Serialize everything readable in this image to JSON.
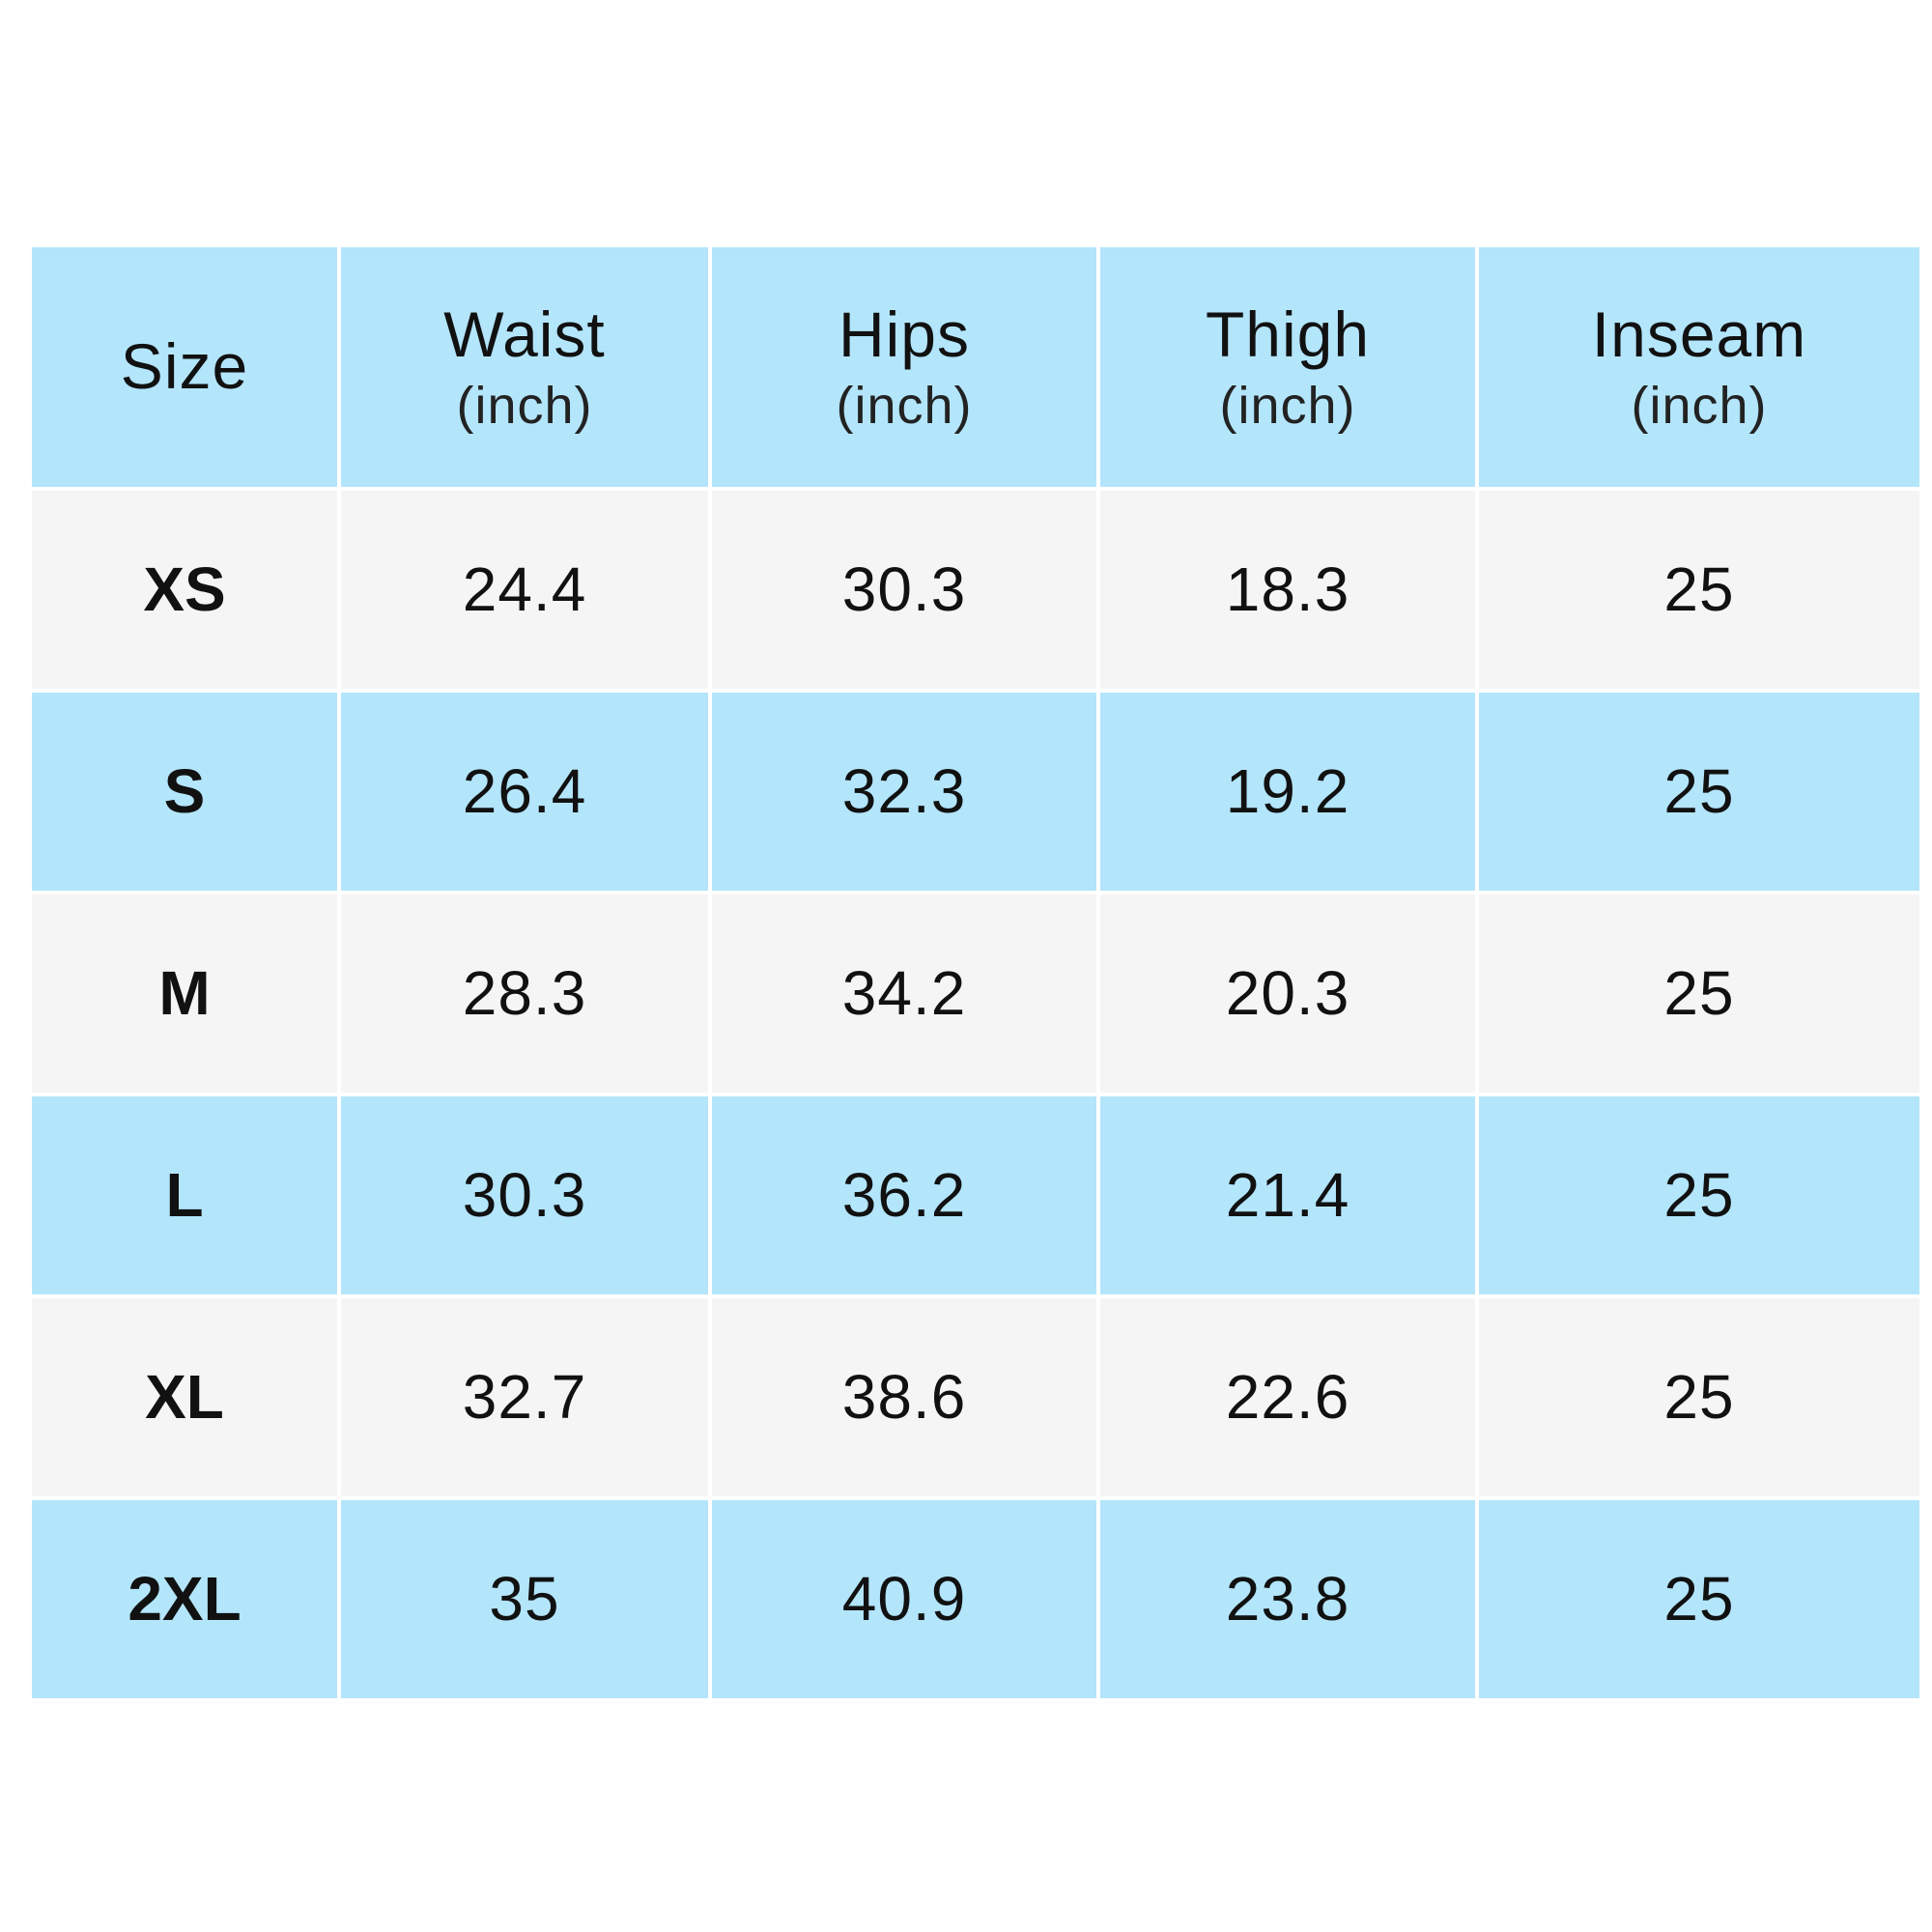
{
  "colors": {
    "header_bg": "#b3e5fb",
    "row_light_bg": "#f5f5f5",
    "row_blue_bg": "#b3e5fb",
    "text": "#111111"
  },
  "header": {
    "size": "Size",
    "waist": "Waist",
    "waist_unit": "(inch)",
    "hips": "Hips",
    "hips_unit": "(inch)",
    "thigh": "Thigh",
    "thigh_unit": "(inch)",
    "inseam": "Inseam",
    "inseam_unit": "(inch)"
  },
  "rows": [
    {
      "size": "XS",
      "waist": "24.4",
      "hips": "30.3",
      "thigh": "18.3",
      "inseam": "25"
    },
    {
      "size": "S",
      "waist": "26.4",
      "hips": "32.3",
      "thigh": "19.2",
      "inseam": "25"
    },
    {
      "size": "M",
      "waist": "28.3",
      "hips": "34.2",
      "thigh": "20.3",
      "inseam": "25"
    },
    {
      "size": "L",
      "waist": "30.3",
      "hips": "36.2",
      "thigh": "21.4",
      "inseam": "25"
    },
    {
      "size": "XL",
      "waist": "32.7",
      "hips": "38.6",
      "thigh": "22.6",
      "inseam": "25"
    },
    {
      "size": "2XL",
      "waist": "35",
      "hips": "40.9",
      "thigh": "23.8",
      "inseam": "25"
    }
  ]
}
